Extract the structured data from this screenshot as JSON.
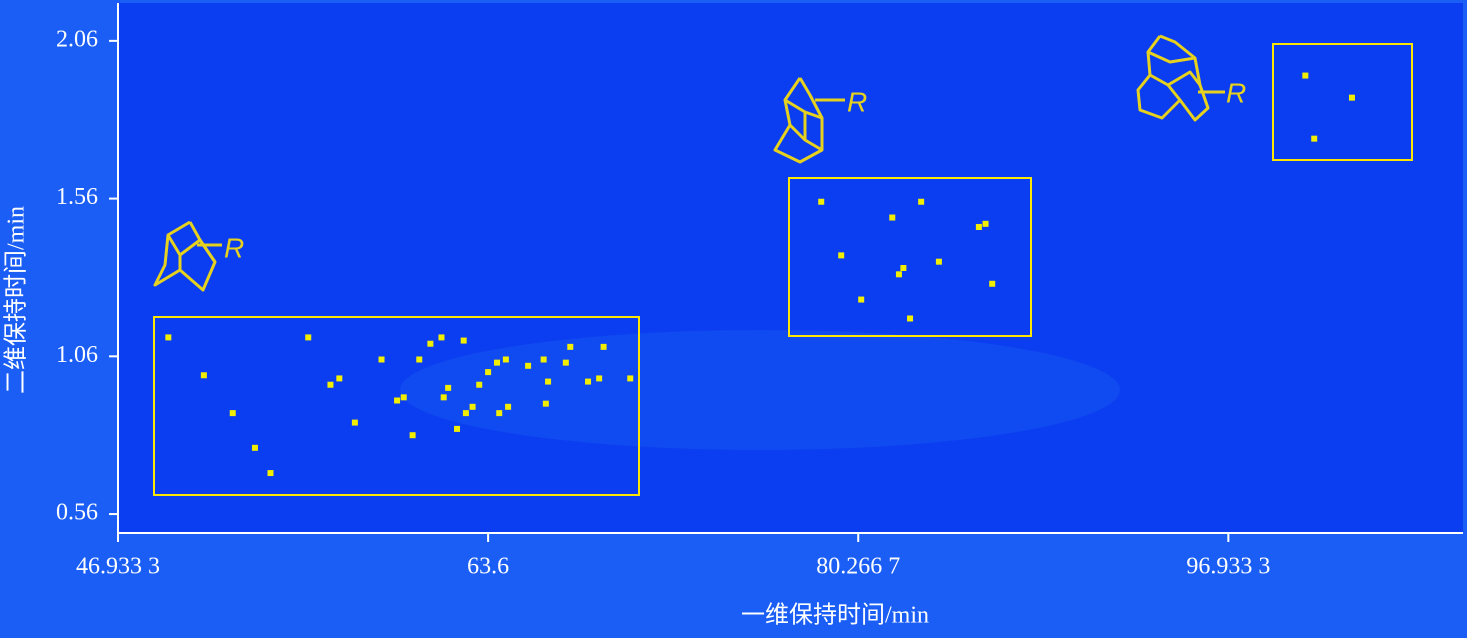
{
  "chart_data": {
    "type": "scatter",
    "xlabel": "一维保持时间/min",
    "ylabel": "二维保持时间/min",
    "x": [
      49.2,
      50.8,
      52.1,
      53.1,
      53.8,
      55.5,
      56.5,
      56.9,
      57.6,
      58.8,
      59.5,
      59.8,
      60.2,
      60.5,
      61.0,
      61.5,
      61.6,
      61.8,
      62.2,
      62.5,
      62.6,
      62.9,
      63.2,
      63.6,
      64.0,
      64.1,
      64.4,
      64.5,
      65.4,
      66.1,
      66.2,
      66.3,
      67.1,
      67.3,
      68.1,
      68.6,
      68.8,
      70.0,
      78.6,
      79.5,
      80.4,
      81.8,
      82.1,
      82.3,
      82.6,
      83.1,
      83.9,
      85.7,
      86.0,
      86.3,
      100.4,
      102.5,
      100.8
    ],
    "y": [
      1.12,
      1.0,
      0.88,
      0.77,
      0.69,
      1.12,
      0.97,
      0.99,
      0.85,
      1.05,
      0.92,
      0.93,
      0.81,
      1.05,
      1.1,
      1.12,
      0.93,
      0.96,
      0.83,
      1.11,
      0.88,
      0.9,
      0.97,
      1.01,
      1.04,
      0.88,
      1.05,
      0.9,
      1.03,
      1.05,
      0.91,
      0.98,
      1.04,
      1.09,
      0.98,
      0.99,
      1.09,
      0.99,
      1.55,
      1.38,
      1.24,
      1.5,
      1.32,
      1.34,
      1.18,
      1.55,
      1.36,
      1.47,
      1.48,
      1.29,
      1.95,
      1.88,
      1.75
    ],
    "color": "#f2ee00",
    "xlim": [
      46.9333,
      107.5
    ],
    "ylim": [
      0.5,
      2.18
    ],
    "xticks": [
      {
        "value": 46.9333,
        "label": "46.933 3"
      },
      63.6,
      {
        "value": 80.2667,
        "label": "80.266 7"
      },
      {
        "value": 96.9333,
        "label": "96.933 3"
      }
    ],
    "yticks": [
      2.06,
      1.56,
      1.06,
      0.56
    ],
    "structure_labels": [
      "R",
      "R",
      "R"
    ]
  }
}
